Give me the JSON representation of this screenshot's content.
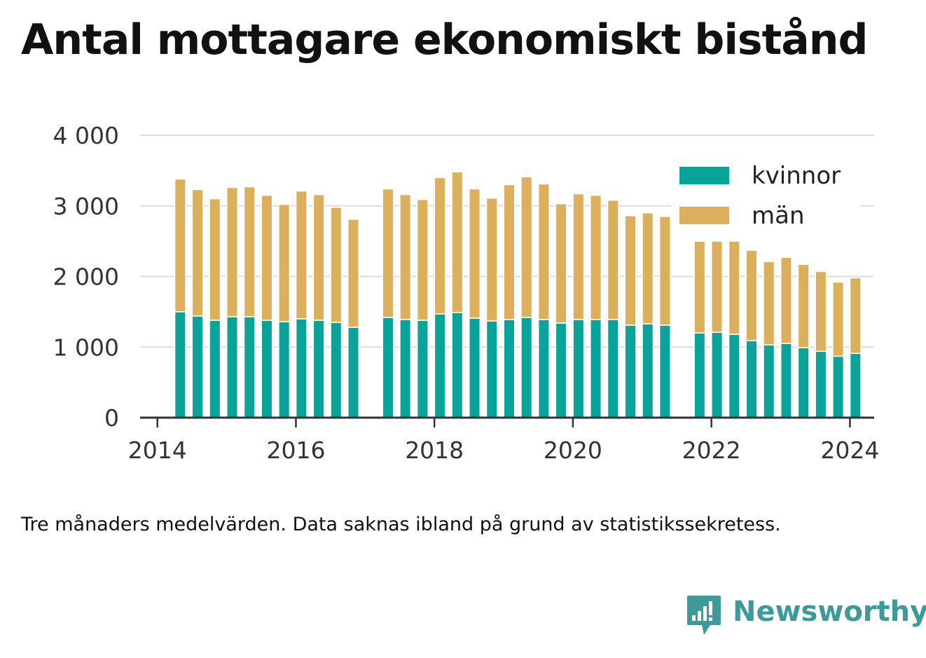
{
  "title": "Antal mottagare ekonomiskt bistånd",
  "caption": "Tre månaders medelvärden. Data saknas ibland på grund av statistikssekretess.",
  "brand": {
    "name": "Newsworthy",
    "icon": "newsworthy-logo-icon"
  },
  "colors": {
    "kvinnor": "#0aa39a",
    "man": "#dbaf5b",
    "grid": "#dddddd",
    "axis": "#333333",
    "brand": "#3d9a98"
  },
  "chart_data": {
    "type": "bar",
    "stacked": true,
    "title": "Antal mottagare ekonomiskt bistånd",
    "xlabel": "",
    "ylabel": "",
    "ylim": [
      0,
      4000
    ],
    "xlim": [
      2013.75,
      2024.35
    ],
    "yticks": [
      {
        "value": 0,
        "label": "0"
      },
      {
        "value": 1000,
        "label": "1 000"
      },
      {
        "value": 2000,
        "label": "2 000"
      },
      {
        "value": 3000,
        "label": "3 000"
      },
      {
        "value": 4000,
        "label": "4 000"
      }
    ],
    "xticks": [
      {
        "value": 2014,
        "label": "2014"
      },
      {
        "value": 2016,
        "label": "2016"
      },
      {
        "value": 2018,
        "label": "2018"
      },
      {
        "value": 2020,
        "label": "2020"
      },
      {
        "value": 2022,
        "label": "2022"
      },
      {
        "value": 2024,
        "label": "2024"
      }
    ],
    "grid": true,
    "legend": "top-right",
    "x": [
      2014.33,
      2014.58,
      2014.83,
      2015.08,
      2015.33,
      2015.58,
      2015.83,
      2016.08,
      2016.33,
      2016.58,
      2016.83,
      2017.33,
      2017.58,
      2017.83,
      2018.08,
      2018.33,
      2018.58,
      2018.83,
      2019.08,
      2019.33,
      2019.58,
      2019.83,
      2020.08,
      2020.33,
      2020.58,
      2020.83,
      2021.08,
      2021.33,
      2021.83,
      2022.08,
      2022.33,
      2022.58,
      2022.83,
      2023.08,
      2023.33,
      2023.58,
      2023.83,
      2024.08
    ],
    "series": [
      {
        "name": "kvinnor",
        "values": [
          1500,
          1440,
          1380,
          1430,
          1430,
          1380,
          1360,
          1400,
          1380,
          1350,
          1280,
          1420,
          1390,
          1380,
          1470,
          1490,
          1410,
          1370,
          1390,
          1420,
          1390,
          1340,
          1390,
          1390,
          1390,
          1310,
          1330,
          1310,
          1200,
          1210,
          1180,
          1090,
          1030,
          1050,
          990,
          940,
          870,
          910
        ]
      },
      {
        "name": "män",
        "values": [
          1880,
          1790,
          1720,
          1830,
          1840,
          1770,
          1660,
          1810,
          1780,
          1630,
          1530,
          1820,
          1770,
          1710,
          1930,
          1990,
          1830,
          1740,
          1910,
          1990,
          1920,
          1690,
          1780,
          1760,
          1690,
          1550,
          1570,
          1540,
          1300,
          1290,
          1320,
          1280,
          1180,
          1220,
          1180,
          1130,
          1050,
          1070
        ]
      }
    ]
  }
}
